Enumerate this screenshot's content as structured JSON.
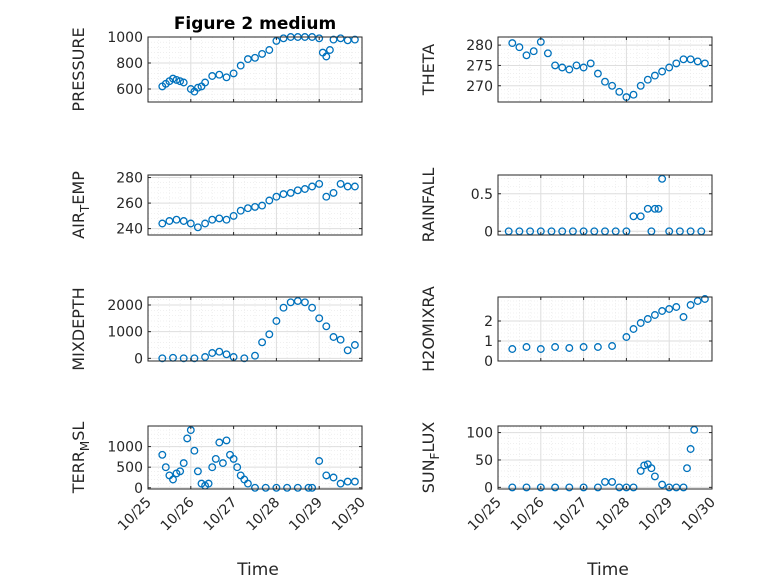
{
  "chart_data": [
    {
      "type": "scatter",
      "title": "Figure 2 medium",
      "ylabel": "PRESSURE",
      "xlabel": "",
      "xlim": [
        "10/25",
        "10/30"
      ],
      "ylim": [
        500,
        1000
      ],
      "yticks": [
        600,
        800,
        1000
      ],
      "ytick_labels": [
        "600",
        "800",
        "1000"
      ],
      "grid": true,
      "series": [
        {
          "x": [
            "2014-10-25 08:00",
            "2014-10-25 10:00",
            "2014-10-25 12:00",
            "2014-10-25 14:00",
            "2014-10-25 16:00",
            "2014-10-25 18:00",
            "2014-10-25 20:00",
            "2014-10-26 00:00",
            "2014-10-26 02:00",
            "2014-10-26 04:00",
            "2014-10-26 06:00",
            "2014-10-26 08:00",
            "2014-10-26 12:00",
            "2014-10-26 16:00",
            "2014-10-26 20:00",
            "2014-10-27 00:00",
            "2014-10-27 04:00",
            "2014-10-27 08:00",
            "2014-10-27 12:00",
            "2014-10-27 16:00",
            "2014-10-27 20:00",
            "2014-10-28 00:00",
            "2014-10-28 04:00",
            "2014-10-28 08:00",
            "2014-10-28 12:00",
            "2014-10-28 16:00",
            "2014-10-28 20:00",
            "2014-10-29 00:00",
            "2014-10-29 02:00",
            "2014-10-29 04:00",
            "2014-10-29 06:00",
            "2014-10-29 08:00",
            "2014-10-29 12:00",
            "2014-10-29 16:00",
            "2014-10-29 20:00"
          ],
          "y": [
            620,
            640,
            660,
            680,
            670,
            660,
            650,
            600,
            580,
            610,
            620,
            650,
            700,
            710,
            690,
            720,
            780,
            830,
            840,
            870,
            900,
            970,
            990,
            1000,
            1000,
            1000,
            1000,
            990,
            880,
            850,
            900,
            980,
            990,
            975,
            980
          ]
        }
      ]
    },
    {
      "type": "scatter",
      "title": "",
      "ylabel": "THETA",
      "xlabel": "",
      "xlim": [
        "10/25",
        "10/30"
      ],
      "ylim": [
        266,
        282
      ],
      "yticks": [
        270,
        275,
        280
      ],
      "ytick_labels": [
        "270",
        "275",
        "280"
      ],
      "grid": true,
      "series": [
        {
          "x": [
            "2014-10-25 08:00",
            "2014-10-25 12:00",
            "2014-10-25 16:00",
            "2014-10-25 20:00",
            "2014-10-26 00:00",
            "2014-10-26 04:00",
            "2014-10-26 08:00",
            "2014-10-26 12:00",
            "2014-10-26 16:00",
            "2014-10-26 20:00",
            "2014-10-27 00:00",
            "2014-10-27 04:00",
            "2014-10-27 08:00",
            "2014-10-27 12:00",
            "2014-10-27 16:00",
            "2014-10-27 20:00",
            "2014-10-28 00:00",
            "2014-10-28 04:00",
            "2014-10-28 08:00",
            "2014-10-28 12:00",
            "2014-10-28 16:00",
            "2014-10-28 20:00",
            "2014-10-29 00:00",
            "2014-10-29 04:00",
            "2014-10-29 08:00",
            "2014-10-29 12:00",
            "2014-10-29 16:00",
            "2014-10-29 20:00"
          ],
          "y": [
            280.5,
            279.5,
            277.5,
            278.5,
            280.8,
            278.0,
            275.0,
            274.5,
            274.0,
            275.0,
            274.5,
            275.5,
            273.0,
            271.0,
            270.0,
            268.5,
            267.2,
            267.8,
            270.0,
            271.5,
            272.5,
            273.5,
            274.5,
            275.5,
            276.5,
            276.5,
            276.0,
            275.5
          ]
        }
      ]
    },
    {
      "type": "scatter",
      "title": "",
      "ylabel": "AIR_TEMP",
      "xlabel": "",
      "xlim": [
        "10/25",
        "10/30"
      ],
      "ylim": [
        235,
        282
      ],
      "yticks": [
        240,
        260,
        280
      ],
      "ytick_labels": [
        "240",
        "260",
        "280"
      ],
      "grid": true,
      "series": [
        {
          "x": [
            "2014-10-25 08:00",
            "2014-10-25 12:00",
            "2014-10-25 16:00",
            "2014-10-25 20:00",
            "2014-10-26 00:00",
            "2014-10-26 04:00",
            "2014-10-26 08:00",
            "2014-10-26 12:00",
            "2014-10-26 16:00",
            "2014-10-26 20:00",
            "2014-10-27 00:00",
            "2014-10-27 04:00",
            "2014-10-27 08:00",
            "2014-10-27 12:00",
            "2014-10-27 16:00",
            "2014-10-27 20:00",
            "2014-10-28 00:00",
            "2014-10-28 04:00",
            "2014-10-28 08:00",
            "2014-10-28 12:00",
            "2014-10-28 16:00",
            "2014-10-28 20:00",
            "2014-10-29 00:00",
            "2014-10-29 04:00",
            "2014-10-29 08:00",
            "2014-10-29 12:00",
            "2014-10-29 16:00",
            "2014-10-29 20:00"
          ],
          "y": [
            244,
            246,
            247,
            246,
            244,
            241,
            244,
            247,
            248,
            247,
            250,
            254,
            256,
            257,
            258,
            262,
            265,
            267,
            268,
            270,
            271,
            273,
            275,
            265,
            268,
            275,
            273,
            273
          ]
        }
      ]
    },
    {
      "type": "scatter",
      "title": "",
      "ylabel": "RAINFALL",
      "xlabel": "",
      "xlim": [
        "10/25",
        "10/30"
      ],
      "ylim": [
        -0.05,
        0.75
      ],
      "yticks": [
        0,
        0.5
      ],
      "ytick_labels": [
        "0",
        "0.5"
      ],
      "grid": true,
      "series": [
        {
          "x": [
            "2014-10-25 06:00",
            "2014-10-25 12:00",
            "2014-10-25 18:00",
            "2014-10-26 00:00",
            "2014-10-26 06:00",
            "2014-10-26 12:00",
            "2014-10-26 18:00",
            "2014-10-27 00:00",
            "2014-10-27 06:00",
            "2014-10-27 12:00",
            "2014-10-27 18:00",
            "2014-10-28 00:00",
            "2014-10-28 04:00",
            "2014-10-28 08:00",
            "2014-10-28 12:00",
            "2014-10-28 14:00",
            "2014-10-28 16:00",
            "2014-10-28 18:00",
            "2014-10-28 20:00",
            "2014-10-29 00:00",
            "2014-10-29 06:00",
            "2014-10-29 12:00",
            "2014-10-29 18:00"
          ],
          "y": [
            0,
            0,
            0,
            0,
            0,
            0,
            0,
            0,
            0,
            0,
            0,
            0,
            0.2,
            0.2,
            0.3,
            0,
            0.3,
            0.3,
            0.7,
            0,
            0,
            0,
            0
          ]
        }
      ]
    },
    {
      "type": "scatter",
      "title": "",
      "ylabel": "MIXDEPTH",
      "xlabel": "",
      "xlim": [
        "10/25",
        "10/30"
      ],
      "ylim": [
        -100,
        2300
      ],
      "yticks": [
        0,
        1000,
        2000
      ],
      "ytick_labels": [
        "0",
        "1000",
        "2000"
      ],
      "grid": true,
      "series": [
        {
          "x": [
            "2014-10-25 08:00",
            "2014-10-25 14:00",
            "2014-10-25 20:00",
            "2014-10-26 02:00",
            "2014-10-26 08:00",
            "2014-10-26 12:00",
            "2014-10-26 16:00",
            "2014-10-26 20:00",
            "2014-10-27 00:00",
            "2014-10-27 06:00",
            "2014-10-27 12:00",
            "2014-10-27 16:00",
            "2014-10-27 20:00",
            "2014-10-28 00:00",
            "2014-10-28 04:00",
            "2014-10-28 08:00",
            "2014-10-28 12:00",
            "2014-10-28 16:00",
            "2014-10-28 20:00",
            "2014-10-29 00:00",
            "2014-10-29 04:00",
            "2014-10-29 08:00",
            "2014-10-29 12:00",
            "2014-10-29 16:00",
            "2014-10-29 20:00"
          ],
          "y": [
            0,
            20,
            0,
            0,
            50,
            200,
            250,
            150,
            50,
            0,
            100,
            600,
            900,
            1400,
            1900,
            2100,
            2150,
            2100,
            1900,
            1500,
            1200,
            800,
            700,
            300,
            500
          ]
        }
      ]
    },
    {
      "type": "scatter",
      "title": "",
      "ylabel": "H2OMIXRA",
      "xlabel": "",
      "xlim": [
        "10/25",
        "10/30"
      ],
      "ylim": [
        0,
        3.2
      ],
      "yticks": [
        0,
        1,
        2
      ],
      "ytick_labels": [
        "0",
        "1",
        "2"
      ],
      "grid": true,
      "series": [
        {
          "x": [
            "2014-10-25 08:00",
            "2014-10-25 16:00",
            "2014-10-26 00:00",
            "2014-10-26 08:00",
            "2014-10-26 16:00",
            "2014-10-27 00:00",
            "2014-10-27 08:00",
            "2014-10-27 16:00",
            "2014-10-28 00:00",
            "2014-10-28 04:00",
            "2014-10-28 08:00",
            "2014-10-28 12:00",
            "2014-10-28 16:00",
            "2014-10-28 20:00",
            "2014-10-29 00:00",
            "2014-10-29 04:00",
            "2014-10-29 08:00",
            "2014-10-29 12:00",
            "2014-10-29 16:00",
            "2014-10-29 20:00"
          ],
          "y": [
            0.6,
            0.7,
            0.6,
            0.7,
            0.65,
            0.7,
            0.7,
            0.75,
            1.2,
            1.6,
            1.9,
            2.1,
            2.3,
            2.5,
            2.6,
            2.7,
            2.2,
            2.8,
            3.0,
            3.1
          ]
        }
      ]
    },
    {
      "type": "scatter",
      "title": "",
      "ylabel": "TERR_MSL",
      "xlabel": "Time",
      "xlim": [
        "10/25",
        "10/30"
      ],
      "ylim": [
        -30,
        1500
      ],
      "yticks": [
        0,
        500,
        1000
      ],
      "ytick_labels": [
        "0",
        "500",
        "1000"
      ],
      "xticks": [
        "10/25",
        "10/26",
        "10/27",
        "10/28",
        "10/29",
        "10/30"
      ],
      "grid": true,
      "series": [
        {
          "x": [
            "2014-10-25 08:00",
            "2014-10-25 10:00",
            "2014-10-25 12:00",
            "2014-10-25 14:00",
            "2014-10-25 16:00",
            "2014-10-25 18:00",
            "2014-10-25 20:00",
            "2014-10-25 22:00",
            "2014-10-26 00:00",
            "2014-10-26 02:00",
            "2014-10-26 04:00",
            "2014-10-26 06:00",
            "2014-10-26 08:00",
            "2014-10-26 10:00",
            "2014-10-26 12:00",
            "2014-10-26 14:00",
            "2014-10-26 16:00",
            "2014-10-26 18:00",
            "2014-10-26 20:00",
            "2014-10-26 22:00",
            "2014-10-27 00:00",
            "2014-10-27 02:00",
            "2014-10-27 04:00",
            "2014-10-27 06:00",
            "2014-10-27 08:00",
            "2014-10-27 12:00",
            "2014-10-27 18:00",
            "2014-10-28 00:00",
            "2014-10-28 06:00",
            "2014-10-28 12:00",
            "2014-10-28 18:00",
            "2014-10-28 20:00",
            "2014-10-29 00:00",
            "2014-10-29 04:00",
            "2014-10-29 08:00",
            "2014-10-29 12:00",
            "2014-10-29 16:00",
            "2014-10-29 20:00"
          ],
          "y": [
            800,
            500,
            300,
            200,
            350,
            400,
            600,
            1200,
            1400,
            900,
            400,
            100,
            50,
            100,
            500,
            700,
            1100,
            600,
            1150,
            800,
            700,
            500,
            300,
            200,
            100,
            0,
            0,
            0,
            0,
            0,
            0,
            0,
            650,
            300,
            250,
            100,
            150,
            150
          ]
        }
      ]
    },
    {
      "type": "scatter",
      "title": "",
      "ylabel": "SUN_FLUX",
      "xlabel": "Time",
      "xlim": [
        "10/25",
        "10/30"
      ],
      "ylim": [
        -3,
        112
      ],
      "yticks": [
        0,
        50,
        100
      ],
      "ytick_labels": [
        "0",
        "50",
        "100"
      ],
      "xticks": [
        "10/25",
        "10/26",
        "10/27",
        "10/28",
        "10/29",
        "10/30"
      ],
      "grid": true,
      "series": [
        {
          "x": [
            "2014-10-25 08:00",
            "2014-10-25 16:00",
            "2014-10-26 00:00",
            "2014-10-26 08:00",
            "2014-10-26 16:00",
            "2014-10-27 00:00",
            "2014-10-27 08:00",
            "2014-10-27 12:00",
            "2014-10-27 16:00",
            "2014-10-27 20:00",
            "2014-10-28 00:00",
            "2014-10-28 04:00",
            "2014-10-28 08:00",
            "2014-10-28 10:00",
            "2014-10-28 12:00",
            "2014-10-28 14:00",
            "2014-10-28 16:00",
            "2014-10-28 20:00",
            "2014-10-29 00:00",
            "2014-10-29 04:00",
            "2014-10-29 08:00",
            "2014-10-29 10:00",
            "2014-10-29 12:00",
            "2014-10-29 14:00"
          ],
          "y": [
            0,
            0,
            0,
            0,
            0,
            0,
            0,
            10,
            10,
            0,
            0,
            0,
            30,
            40,
            42,
            35,
            20,
            5,
            0,
            0,
            0,
            35,
            70,
            105
          ]
        }
      ]
    }
  ],
  "ylabel_parts": [
    {
      "main": "PRESSURE",
      "sub": ""
    },
    {
      "main": "THETA",
      "sub": ""
    },
    {
      "pre": "AIR",
      "sub": "T",
      "post": "EMP"
    },
    {
      "main": "RAINFALL",
      "sub": ""
    },
    {
      "main": "MIXDEPTH",
      "sub": ""
    },
    {
      "main": "H2OMIXRA",
      "sub": ""
    },
    {
      "pre": "TERR",
      "sub": "M",
      "post": "SL"
    },
    {
      "pre": "SUN",
      "sub": "F",
      "post": "LUX"
    }
  ],
  "colors": {
    "marker": "#0072BD",
    "grid": "#dedede",
    "axis": "#262626"
  }
}
